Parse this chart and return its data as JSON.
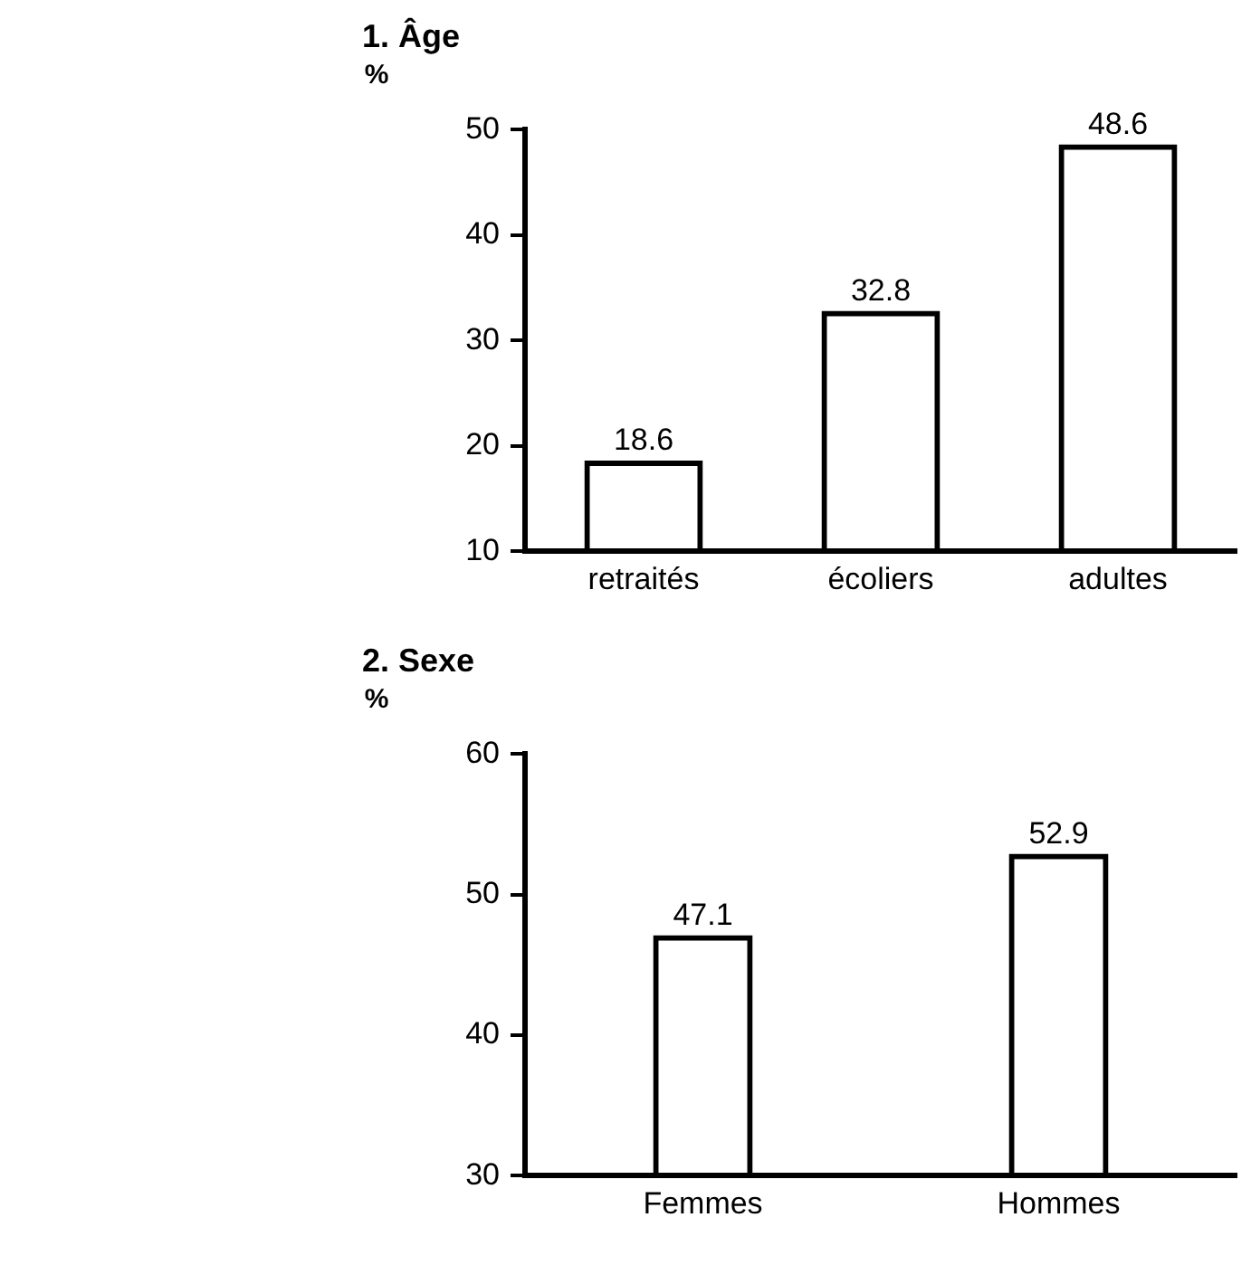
{
  "chart_data": [
    {
      "type": "bar",
      "title": "1. Âge",
      "ylabel": "%",
      "categories": [
        "retraités",
        "écoliers",
        "adultes"
      ],
      "values": [
        18.6,
        32.8,
        48.6
      ],
      "color": "#000000",
      "ylim": [
        10,
        50
      ],
      "yticks": [
        10,
        20,
        30,
        40,
        50
      ],
      "data_labels": true,
      "grid": false,
      "legend": false
    },
    {
      "type": "bar",
      "title": "2. Sexe",
      "ylabel": "%",
      "categories": [
        "Femmes",
        "Hommes"
      ],
      "values": [
        47.1,
        52.9
      ],
      "color": "#000000",
      "ylim": [
        30,
        60
      ],
      "yticks": [
        30,
        40,
        50,
        60
      ],
      "data_labels": true,
      "grid": false,
      "legend": false
    }
  ]
}
